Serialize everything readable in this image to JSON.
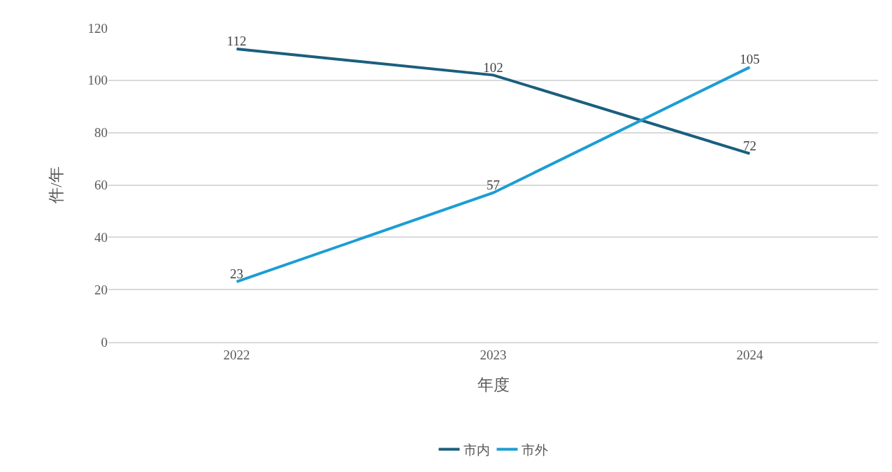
{
  "chart_data": {
    "type": "line",
    "xlabel": "年度",
    "ylabel": "件/年",
    "categories": [
      "2022",
      "2023",
      "2024"
    ],
    "series": [
      {
        "name": "市内",
        "color": "#1b5e7e",
        "values": [
          112,
          102,
          72
        ]
      },
      {
        "name": "市外",
        "color": "#1c9dd4",
        "values": [
          23,
          57,
          105
        ]
      }
    ],
    "ylim": [
      0,
      120
    ],
    "yticks": [
      0,
      20,
      40,
      60,
      80,
      100,
      120
    ],
    "grid": "y",
    "legend": "bottom",
    "marker": "none",
    "line_style": "solid",
    "data_labels": true
  }
}
